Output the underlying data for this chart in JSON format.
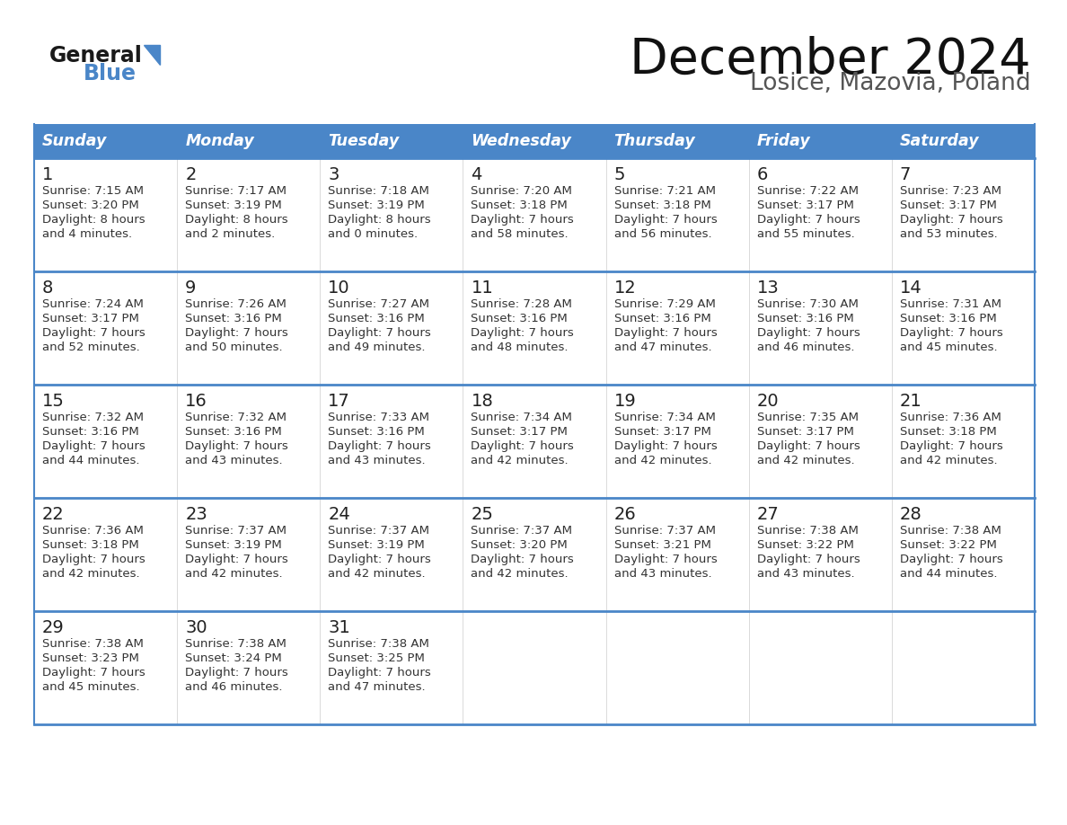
{
  "title": "December 2024",
  "subtitle": "Losice, Mazovia, Poland",
  "header_color": "#4a86c8",
  "header_text_color": "#ffffff",
  "cell_bg_color": "#ffffff",
  "cell_text_color": "#333333",
  "border_color": "#4a86c8",
  "days_of_week": [
    "Sunday",
    "Monday",
    "Tuesday",
    "Wednesday",
    "Thursday",
    "Friday",
    "Saturday"
  ],
  "weeks": [
    [
      {
        "day": 1,
        "sunrise": "7:15 AM",
        "sunset": "3:20 PM",
        "daylight_line1": "Daylight: 8 hours",
        "daylight_line2": "and 4 minutes."
      },
      {
        "day": 2,
        "sunrise": "7:17 AM",
        "sunset": "3:19 PM",
        "daylight_line1": "Daylight: 8 hours",
        "daylight_line2": "and 2 minutes."
      },
      {
        "day": 3,
        "sunrise": "7:18 AM",
        "sunset": "3:19 PM",
        "daylight_line1": "Daylight: 8 hours",
        "daylight_line2": "and 0 minutes."
      },
      {
        "day": 4,
        "sunrise": "7:20 AM",
        "sunset": "3:18 PM",
        "daylight_line1": "Daylight: 7 hours",
        "daylight_line2": "and 58 minutes."
      },
      {
        "day": 5,
        "sunrise": "7:21 AM",
        "sunset": "3:18 PM",
        "daylight_line1": "Daylight: 7 hours",
        "daylight_line2": "and 56 minutes."
      },
      {
        "day": 6,
        "sunrise": "7:22 AM",
        "sunset": "3:17 PM",
        "daylight_line1": "Daylight: 7 hours",
        "daylight_line2": "and 55 minutes."
      },
      {
        "day": 7,
        "sunrise": "7:23 AM",
        "sunset": "3:17 PM",
        "daylight_line1": "Daylight: 7 hours",
        "daylight_line2": "and 53 minutes."
      }
    ],
    [
      {
        "day": 8,
        "sunrise": "7:24 AM",
        "sunset": "3:17 PM",
        "daylight_line1": "Daylight: 7 hours",
        "daylight_line2": "and 52 minutes."
      },
      {
        "day": 9,
        "sunrise": "7:26 AM",
        "sunset": "3:16 PM",
        "daylight_line1": "Daylight: 7 hours",
        "daylight_line2": "and 50 minutes."
      },
      {
        "day": 10,
        "sunrise": "7:27 AM",
        "sunset": "3:16 PM",
        "daylight_line1": "Daylight: 7 hours",
        "daylight_line2": "and 49 minutes."
      },
      {
        "day": 11,
        "sunrise": "7:28 AM",
        "sunset": "3:16 PM",
        "daylight_line1": "Daylight: 7 hours",
        "daylight_line2": "and 48 minutes."
      },
      {
        "day": 12,
        "sunrise": "7:29 AM",
        "sunset": "3:16 PM",
        "daylight_line1": "Daylight: 7 hours",
        "daylight_line2": "and 47 minutes."
      },
      {
        "day": 13,
        "sunrise": "7:30 AM",
        "sunset": "3:16 PM",
        "daylight_line1": "Daylight: 7 hours",
        "daylight_line2": "and 46 minutes."
      },
      {
        "day": 14,
        "sunrise": "7:31 AM",
        "sunset": "3:16 PM",
        "daylight_line1": "Daylight: 7 hours",
        "daylight_line2": "and 45 minutes."
      }
    ],
    [
      {
        "day": 15,
        "sunrise": "7:32 AM",
        "sunset": "3:16 PM",
        "daylight_line1": "Daylight: 7 hours",
        "daylight_line2": "and 44 minutes."
      },
      {
        "day": 16,
        "sunrise": "7:32 AM",
        "sunset": "3:16 PM",
        "daylight_line1": "Daylight: 7 hours",
        "daylight_line2": "and 43 minutes."
      },
      {
        "day": 17,
        "sunrise": "7:33 AM",
        "sunset": "3:16 PM",
        "daylight_line1": "Daylight: 7 hours",
        "daylight_line2": "and 43 minutes."
      },
      {
        "day": 18,
        "sunrise": "7:34 AM",
        "sunset": "3:17 PM",
        "daylight_line1": "Daylight: 7 hours",
        "daylight_line2": "and 42 minutes."
      },
      {
        "day": 19,
        "sunrise": "7:34 AM",
        "sunset": "3:17 PM",
        "daylight_line1": "Daylight: 7 hours",
        "daylight_line2": "and 42 minutes."
      },
      {
        "day": 20,
        "sunrise": "7:35 AM",
        "sunset": "3:17 PM",
        "daylight_line1": "Daylight: 7 hours",
        "daylight_line2": "and 42 minutes."
      },
      {
        "day": 21,
        "sunrise": "7:36 AM",
        "sunset": "3:18 PM",
        "daylight_line1": "Daylight: 7 hours",
        "daylight_line2": "and 42 minutes."
      }
    ],
    [
      {
        "day": 22,
        "sunrise": "7:36 AM",
        "sunset": "3:18 PM",
        "daylight_line1": "Daylight: 7 hours",
        "daylight_line2": "and 42 minutes."
      },
      {
        "day": 23,
        "sunrise": "7:37 AM",
        "sunset": "3:19 PM",
        "daylight_line1": "Daylight: 7 hours",
        "daylight_line2": "and 42 minutes."
      },
      {
        "day": 24,
        "sunrise": "7:37 AM",
        "sunset": "3:19 PM",
        "daylight_line1": "Daylight: 7 hours",
        "daylight_line2": "and 42 minutes."
      },
      {
        "day": 25,
        "sunrise": "7:37 AM",
        "sunset": "3:20 PM",
        "daylight_line1": "Daylight: 7 hours",
        "daylight_line2": "and 42 minutes."
      },
      {
        "day": 26,
        "sunrise": "7:37 AM",
        "sunset": "3:21 PM",
        "daylight_line1": "Daylight: 7 hours",
        "daylight_line2": "and 43 minutes."
      },
      {
        "day": 27,
        "sunrise": "7:38 AM",
        "sunset": "3:22 PM",
        "daylight_line1": "Daylight: 7 hours",
        "daylight_line2": "and 43 minutes."
      },
      {
        "day": 28,
        "sunrise": "7:38 AM",
        "sunset": "3:22 PM",
        "daylight_line1": "Daylight: 7 hours",
        "daylight_line2": "and 44 minutes."
      }
    ],
    [
      {
        "day": 29,
        "sunrise": "7:38 AM",
        "sunset": "3:23 PM",
        "daylight_line1": "Daylight: 7 hours",
        "daylight_line2": "and 45 minutes."
      },
      {
        "day": 30,
        "sunrise": "7:38 AM",
        "sunset": "3:24 PM",
        "daylight_line1": "Daylight: 7 hours",
        "daylight_line2": "and 46 minutes."
      },
      {
        "day": 31,
        "sunrise": "7:38 AM",
        "sunset": "3:25 PM",
        "daylight_line1": "Daylight: 7 hours",
        "daylight_line2": "and 47 minutes."
      },
      null,
      null,
      null,
      null
    ]
  ],
  "logo_text_general": "General",
  "logo_text_blue": "Blue",
  "logo_color_general": "#1a1a1a",
  "logo_color_blue": "#4a86c8",
  "logo_triangle_color": "#4a86c8"
}
